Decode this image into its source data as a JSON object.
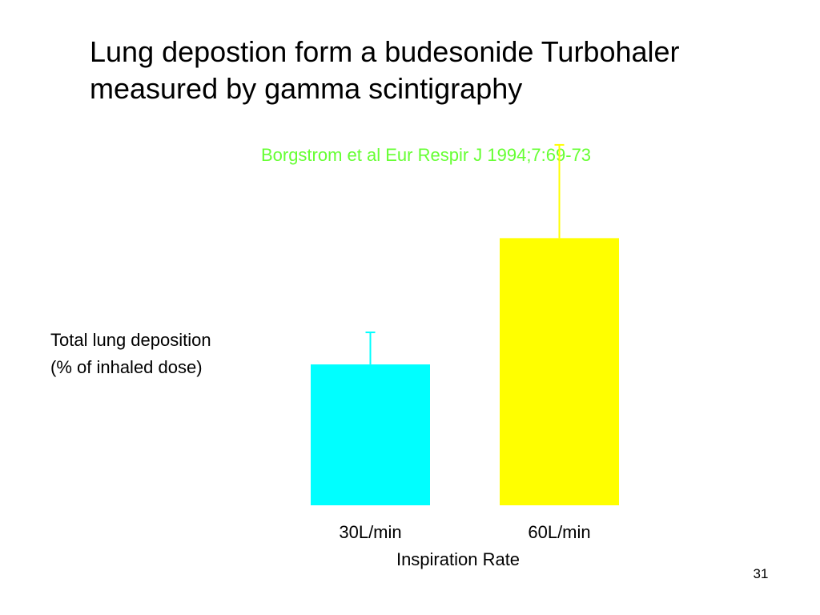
{
  "slide": {
    "title_lines": [
      "Lung depostion form a budesonide Turbohaler",
      "measured by gamma scintigraphy"
    ],
    "citation": "Borgstrom et al Eur Respir J 1994;7:69-73",
    "page_number": "31"
  },
  "colors": {
    "citation": "#66ff33",
    "bar_30": "#00ffff",
    "bar_60": "#ffff00"
  },
  "chart_data": {
    "type": "bar",
    "ylabel_lines": [
      "Total lung deposition",
      "(% of inhaled dose)"
    ],
    "xlabel": "Inspiration Rate",
    "categories": [
      "30L/min",
      "60L/min"
    ],
    "values": [
      14.5,
      27.5
    ],
    "error_upper": [
      3.3,
      9.6
    ],
    "ylim": [
      0,
      38
    ],
    "grid": false,
    "bar_colors": [
      "#00ffff",
      "#ffff00"
    ]
  }
}
